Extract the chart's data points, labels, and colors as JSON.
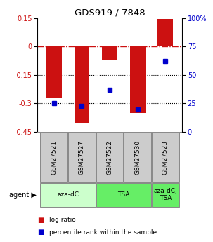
{
  "title": "GDS919 / 7848",
  "samples": [
    "GSM27521",
    "GSM27527",
    "GSM27522",
    "GSM27530",
    "GSM27523"
  ],
  "log_ratios": [
    -0.27,
    -0.4,
    -0.07,
    -0.35,
    0.145
  ],
  "percentiles": [
    25,
    23,
    37,
    20,
    62
  ],
  "ylim_left": [
    -0.45,
    0.15
  ],
  "ylim_right": [
    0,
    100
  ],
  "yticks_left": [
    0.15,
    0,
    -0.15,
    -0.3,
    -0.45
  ],
  "yticks_right": [
    100,
    75,
    50,
    25,
    0
  ],
  "bar_color": "#cc1111",
  "dot_color": "#0000cc",
  "legend_bar_label": "log ratio",
  "legend_dot_label": "percentile rank within the sample",
  "hline_zero_color": "#cc1111",
  "hline_dotted_color": "#000000",
  "sample_box_color": "#cccccc",
  "agent_light_green": "#ccffcc",
  "agent_green": "#66ee66",
  "bar_width": 0.55,
  "figsize": [
    3.03,
    3.45
  ],
  "dpi": 100
}
